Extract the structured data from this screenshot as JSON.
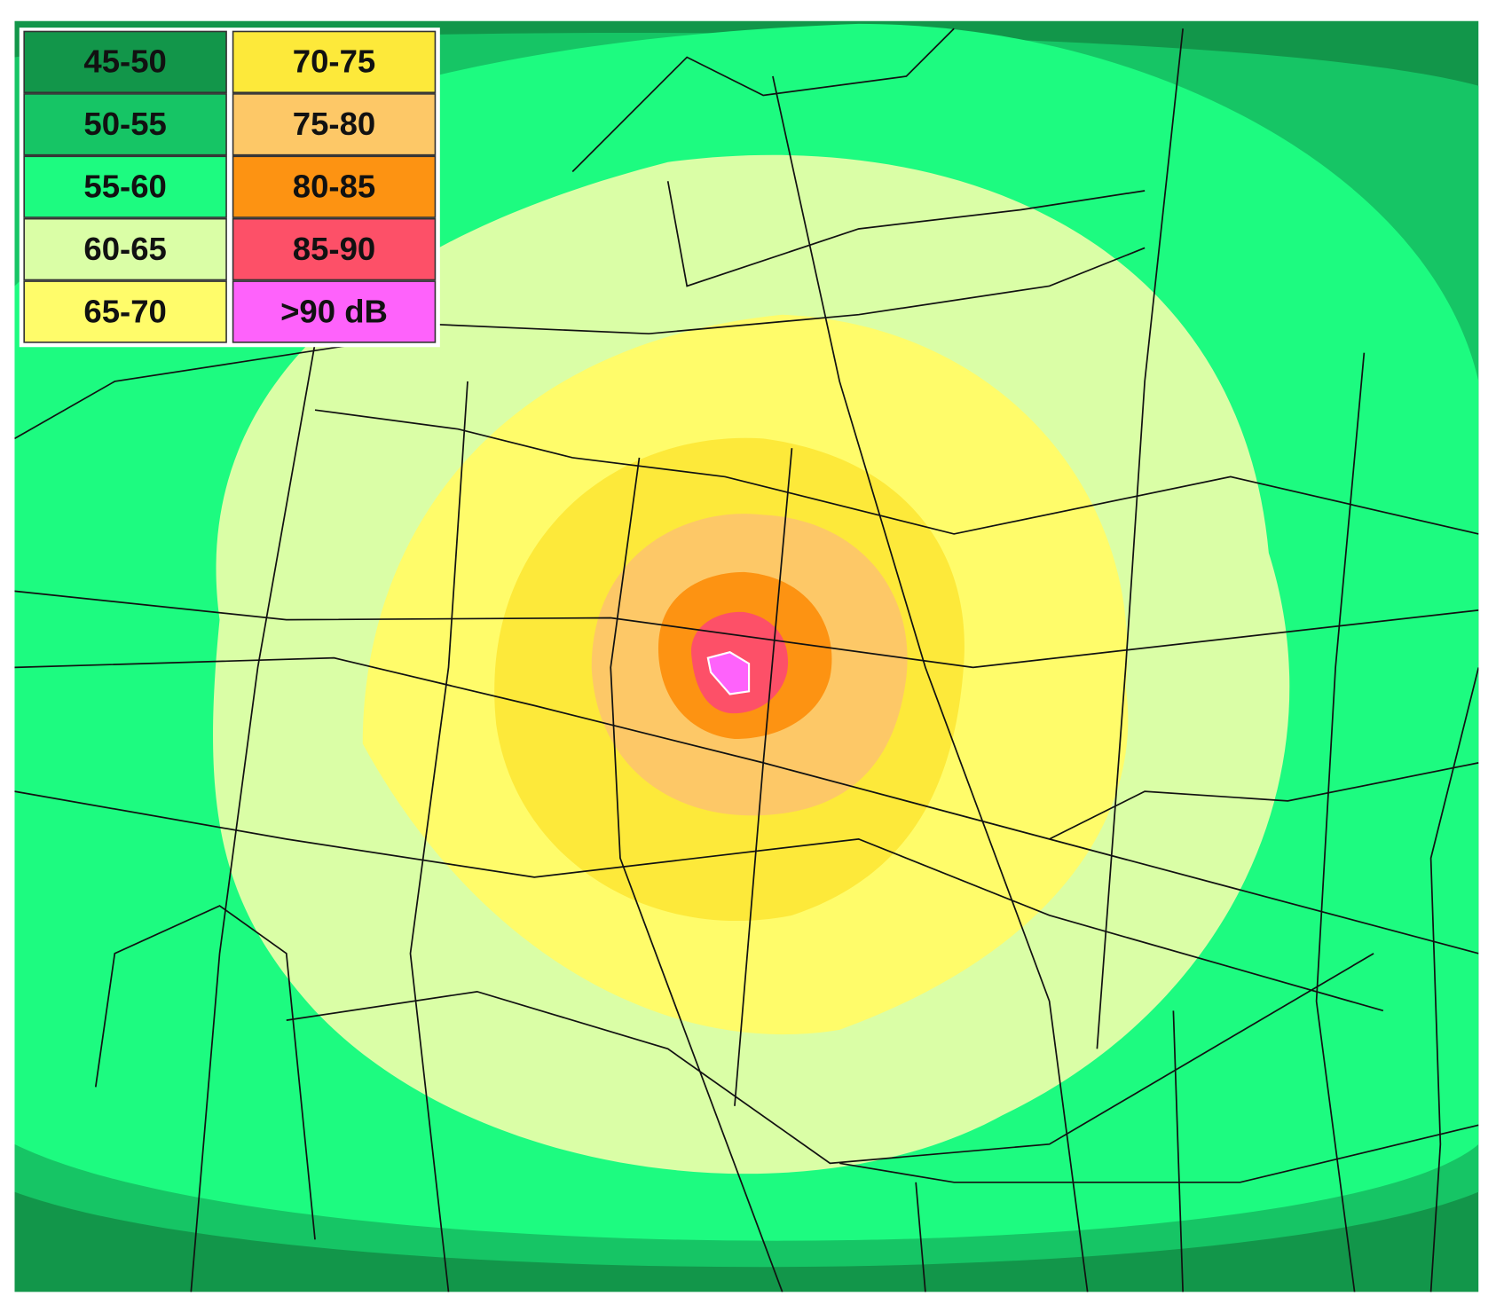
{
  "legend": {
    "items": [
      {
        "label": "45-50",
        "color": "#12964a"
      },
      {
        "label": "50-55",
        "color": "#16c565"
      },
      {
        "label": "55-60",
        "color": "#1dfb80"
      },
      {
        "label": "60-65",
        "color": "#dafea6"
      },
      {
        "label": "65-70",
        "color": "#fffc6a"
      },
      {
        "label": "70-75",
        "color": "#fde93a"
      },
      {
        "label": "75-80",
        "color": "#fdc867"
      },
      {
        "label": "80-85",
        "color": "#fd9312"
      },
      {
        "label": "85-90",
        "color": "#fd5068"
      },
      {
        "label": ">90 dB",
        "color": "#fe62fb"
      }
    ]
  }
}
